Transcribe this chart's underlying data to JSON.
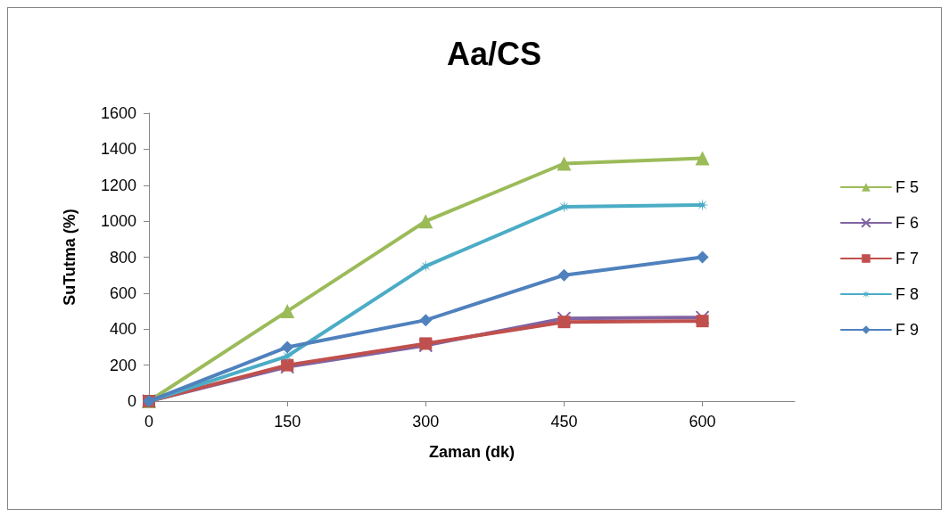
{
  "chart_data": {
    "type": "line",
    "title": "Aa/CS",
    "xlabel": "Zaman (dk)",
    "ylabel": "SuTutma (%)",
    "x": [
      0,
      150,
      300,
      450,
      600
    ],
    "xlim": [
      0,
      700
    ],
    "xticks": [
      0,
      150,
      300,
      450,
      600
    ],
    "ylim": [
      0,
      1600
    ],
    "yticks": [
      0,
      200,
      400,
      600,
      800,
      1000,
      1200,
      1400,
      1600
    ],
    "grid": false,
    "legend": "right",
    "line_style": "solid",
    "series": [
      {
        "name": "F 5",
        "color": "#9bbb59",
        "marker": "triangle",
        "values": [
          0,
          500,
          1000,
          1320,
          1350
        ]
      },
      {
        "name": "F 6",
        "color": "#8064a2",
        "marker": "cross",
        "values": [
          0,
          190,
          310,
          460,
          465
        ]
      },
      {
        "name": "F 7",
        "color": "#c0504d",
        "marker": "square",
        "values": [
          0,
          200,
          320,
          440,
          445
        ]
      },
      {
        "name": "F 8",
        "color": "#4bacc6",
        "marker": "star",
        "values": [
          0,
          250,
          750,
          1080,
          1090
        ]
      },
      {
        "name": "F 9",
        "color": "#4f81bd",
        "marker": "diamond",
        "values": [
          0,
          300,
          450,
          700,
          800
        ]
      }
    ]
  }
}
